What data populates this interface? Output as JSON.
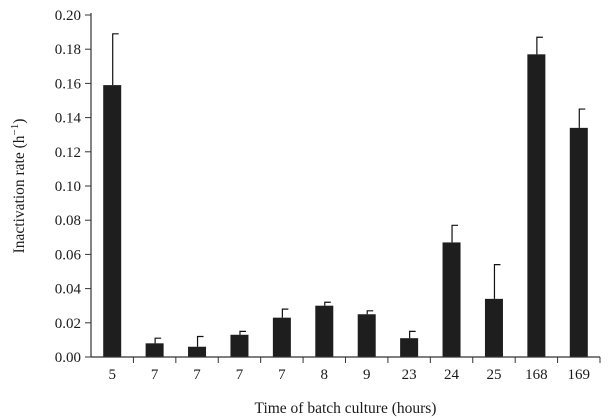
{
  "chart_data": {
    "type": "bar",
    "title": "",
    "xlabel": "Time of batch culture (hours)",
    "ylabel_main": "Inactivation rate (h",
    "ylabel_sup": "−1",
    "ylabel_end": ")",
    "ylim": [
      0,
      0.2
    ],
    "yticks": [
      "0.00",
      "0.02",
      "0.04",
      "0.06",
      "0.08",
      "0.10",
      "0.12",
      "0.14",
      "0.16",
      "0.18",
      "0.20"
    ],
    "categories": [
      "5",
      "7",
      "7",
      "7",
      "7",
      "8",
      "9",
      "23",
      "24",
      "25",
      "168",
      "169"
    ],
    "values": [
      0.159,
      0.008,
      0.006,
      0.013,
      0.023,
      0.03,
      0.025,
      0.011,
      0.067,
      0.034,
      0.177,
      0.134
    ],
    "errors": [
      0.03,
      0.003,
      0.006,
      0.002,
      0.005,
      0.002,
      0.002,
      0.004,
      0.01,
      0.02,
      0.01,
      0.011
    ],
    "bar_color": "#1e1e1e",
    "grid": false,
    "legend": "none"
  }
}
